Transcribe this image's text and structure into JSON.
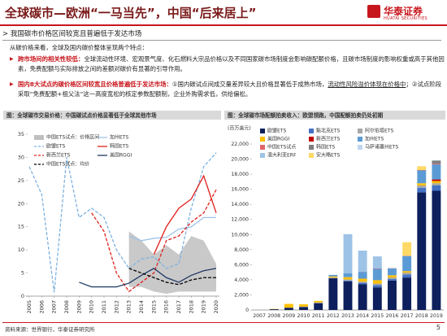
{
  "header": {
    "title": "全球碳市—欧洲“一马当先”，中国“后来居上”",
    "logo": "华泰证券",
    "logo_en": "HUATAI SECURITIES"
  },
  "section": "我国碳市价格区间较宽且普遍低于发达市场",
  "intro": "从碳价格来看，全球及国内碳价整体呈现两个特点：",
  "bullets": [
    {
      "lead": "跨市场间的相关性较低：",
      "parts": [
        "全球流动性环境、宏观景气度、化石燃料大宗品价格以及不同国家碳市场制度会影响碳配额价格，且碳市场制度的影响权重或高于其他因素，免费配额与实际排放之间的差额对碳价有显著的引导作用。"
      ]
    },
    {
      "lead": "国内8大试点的碳价格区间较宽且价格普遍低于发达市场：",
      "parts": [
        "①国内碳试点间成交量差异较大且价格显著低于成熟市场，",
        "流动性风险溢价体现在价格中",
        "；②试点阶段采取“免费配额+祖父法”这一高度宽松的核定参数配额制，企业外购需求低，供给偏松。"
      ]
    }
  ],
  "footer": {
    "source": "资料来源：世界银行，华泰证券研究所",
    "page": "5"
  },
  "chart_data": [
    {
      "type": "line",
      "title": "图：全球碳市交易价格：中国碳试点价格显著低于全球其他市场",
      "x": [
        2005,
        2006,
        2007,
        2008,
        2009,
        2010,
        2011,
        2012,
        2013,
        2014,
        2015,
        2016,
        2017,
        2018,
        2019,
        2020
      ],
      "xlim": [
        2005,
        2020
      ],
      "xticks": [
        2005,
        2006,
        2007,
        2008,
        2009,
        2010,
        2011,
        2012,
        2013,
        2014,
        2015,
        2016,
        2017,
        2018,
        2019,
        2020
      ],
      "ylim": [
        0,
        35
      ],
      "yticks": [
        0,
        5,
        10,
        15,
        20,
        25,
        30,
        35
      ],
      "range": {
        "name": "中国ETS试点：价格区间",
        "color": "#bfbfbf",
        "low": [
          null,
          null,
          null,
          null,
          null,
          null,
          null,
          null,
          2,
          2,
          1,
          0.5,
          1,
          1,
          1,
          1
        ],
        "high": [
          null,
          null,
          null,
          null,
          null,
          null,
          null,
          null,
          14,
          12,
          9,
          11,
          9,
          13,
          12,
          7
        ]
      },
      "series": [
        {
          "name": "加州ETS",
          "color": "#9dc3e6",
          "line_style": "solid",
          "values": [
            null,
            null,
            null,
            null,
            null,
            null,
            null,
            null,
            13,
            12,
            12.5,
            12.7,
            14.5,
            15,
            17,
            17
          ]
        },
        {
          "name": "欧盟ETS",
          "color": "#7fb2e0",
          "line_style": "dashed",
          "values": [
            28,
            22,
            0.8,
            30,
            17,
            19,
            17,
            10,
            6,
            8,
            8.5,
            6,
            7,
            19,
            28,
            31
          ]
        },
        {
          "name": "韩国ETS",
          "color": "#e0201b",
          "line_style": "solid",
          "values": [
            null,
            null,
            null,
            null,
            null,
            null,
            null,
            null,
            null,
            null,
            9,
            15,
            19,
            21,
            26,
            18
          ]
        },
        {
          "name": "新西兰ETS",
          "color": "#e0201b",
          "line_style": "dashed",
          "values": [
            null,
            null,
            null,
            null,
            null,
            18,
            14,
            5,
            1,
            3,
            5,
            12,
            13,
            16,
            18,
            23
          ]
        },
        {
          "name": "美国RGGI",
          "color": "#1f3864",
          "line_style": "solid",
          "values": [
            null,
            null,
            null,
            null,
            3,
            2,
            2,
            2,
            2.8,
            4.5,
            6,
            4,
            3,
            4.5,
            5.5,
            6
          ]
        },
        {
          "name": "中国ETS试点：均价",
          "color": "#000000",
          "line_style": "dashed",
          "values": [
            null,
            null,
            null,
            null,
            null,
            null,
            null,
            null,
            6,
            5,
            4,
            3,
            2.5,
            3.5,
            4,
            4
          ]
        }
      ]
    },
    {
      "type": "stacked_bar",
      "title": "图：全球碳市场配额拍卖收入：欧盟领跑，中国配额拍卖仍处初期",
      "unit": "(百万美元)",
      "categories": [
        "2007",
        "2008",
        "2009",
        "2010",
        "2011",
        "2012",
        "2013",
        "2014",
        "2015",
        "2016",
        "2017",
        "2018",
        "2019"
      ],
      "ylim": [
        0,
        22000
      ],
      "yticks": [
        0,
        {
          "value": 2000,
          "label": "2,000"
        },
        {
          "value": 4000,
          "label": "4,000"
        },
        {
          "value": 6000,
          "label": "6,000"
        },
        {
          "value": 8000,
          "label": "8,000"
        },
        {
          "value": 10000,
          "label": "10,000"
        },
        {
          "value": 12000,
          "label": "12,000"
        },
        {
          "value": 14000,
          "label": "14,000"
        },
        {
          "value": 16000,
          "label": "16,000"
        },
        {
          "value": 18000,
          "label": "18,000"
        },
        {
          "value": 20000,
          "label": "20,000"
        },
        {
          "value": 22000,
          "label": "22,000"
        }
      ],
      "series": [
        {
          "name": "欧盟ETS",
          "color": "#0d1f5c",
          "values": [
            0,
            100,
            300,
            400,
            900,
            4200,
            3800,
            3400,
            3000,
            3900,
            4300,
            15600,
            15800
          ]
        },
        {
          "name": "魁北克ETS",
          "color": "#4472c4",
          "values": [
            0,
            0,
            0,
            0,
            0,
            0,
            100,
            200,
            300,
            200,
            400,
            600,
            700
          ]
        },
        {
          "name": "阿尔伯塔ETS",
          "color": "#a6a6a6",
          "values": [
            0,
            0,
            0,
            50,
            100,
            100,
            150,
            150,
            200,
            200,
            250,
            300,
            300
          ]
        },
        {
          "name": "美国RGGI",
          "color": "#ffc000",
          "values": [
            0,
            40,
            500,
            300,
            200,
            150,
            300,
            400,
            450,
            300,
            200,
            300,
            300
          ]
        },
        {
          "name": "新西兰ETS",
          "color": "#c00000",
          "values": [
            0,
            0,
            0,
            0,
            0,
            0,
            0,
            0,
            0,
            0,
            0,
            0,
            200
          ]
        },
        {
          "name": "加州ETS",
          "color": "#5b9bd5",
          "values": [
            0,
            0,
            0,
            0,
            0,
            200,
            500,
            900,
            1500,
            900,
            2000,
            1700,
            2000
          ]
        },
        {
          "name": "中国ETS试点",
          "color": "#e06666",
          "values": [
            0,
            0,
            0,
            0,
            0,
            0,
            0,
            20,
            50,
            30,
            30,
            50,
            100
          ]
        },
        {
          "name": "韩国ETS",
          "color": "#7f7f7f",
          "values": [
            0,
            0,
            0,
            0,
            0,
            0,
            0,
            0,
            0,
            0,
            0,
            0,
            400
          ]
        },
        {
          "name": "马萨诸塞州ETS",
          "color": "#bdd7ee",
          "values": [
            0,
            0,
            0,
            0,
            0,
            0,
            0,
            0,
            0,
            0,
            0,
            0,
            50
          ]
        },
        {
          "name": "澳大利亚ERF",
          "color": "#9dc3e6",
          "values": [
            0,
            0,
            0,
            0,
            0,
            0,
            5200,
            2800,
            1600,
            0,
            0,
            0,
            0
          ]
        },
        {
          "name": "安大略ETS",
          "color": "#ffd966",
          "values": [
            0,
            0,
            0,
            0,
            0,
            0,
            0,
            0,
            0,
            0,
            1800,
            500,
            0
          ]
        }
      ]
    }
  ]
}
